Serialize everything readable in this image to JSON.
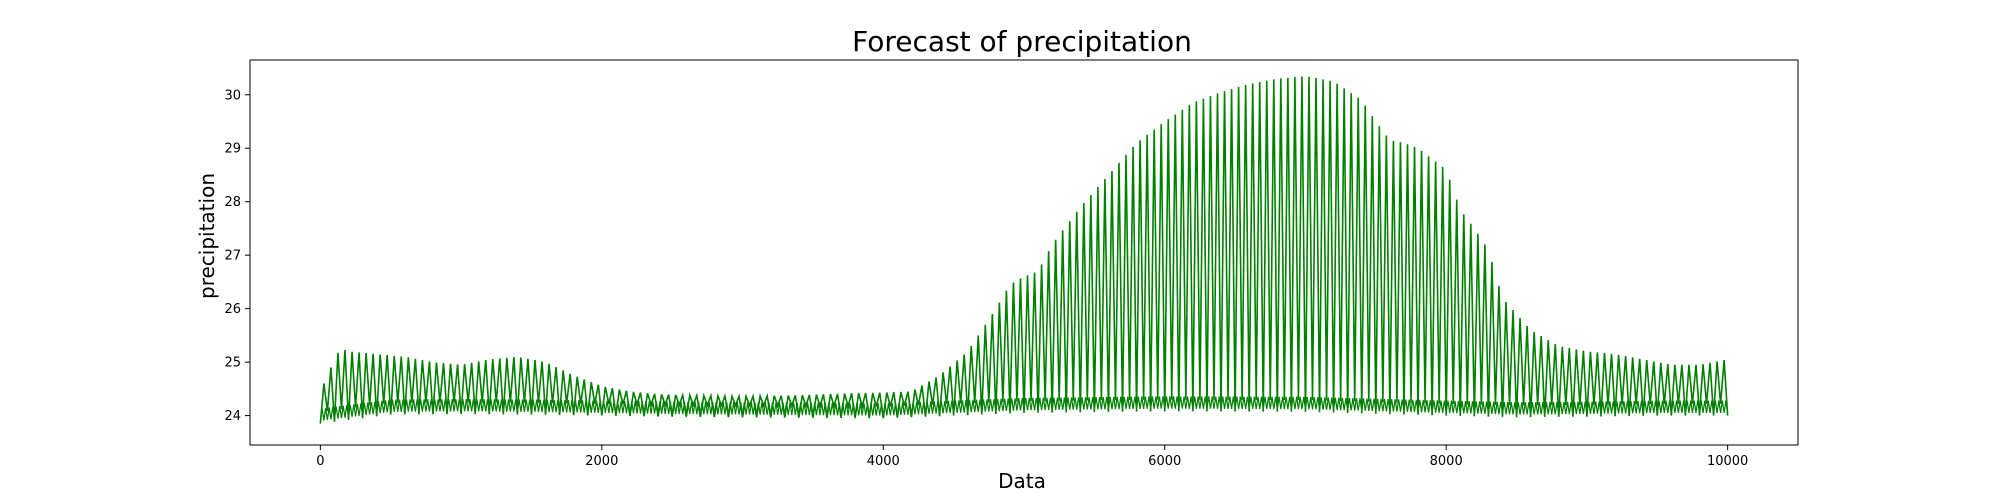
{
  "chart_data": {
    "type": "line",
    "title": "Forecast of precipitation",
    "xlabel": "Data",
    "ylabel": "precipitation",
    "xlim": [
      -500,
      10500
    ],
    "ylim": [
      23.45,
      30.65
    ],
    "x_ticks": [
      0,
      2000,
      4000,
      6000,
      8000,
      10000
    ],
    "y_ticks": [
      24,
      25,
      26,
      27,
      28,
      29,
      30
    ],
    "grid": false,
    "legend": "none",
    "color": "#008000",
    "x_range": [
      0,
      10000
    ],
    "cycle_period": 50,
    "series": [
      {
        "upper_envelope": {
          "x": [
            0,
            50,
            100,
            150,
            200,
            400,
            600,
            800,
            1000,
            1200,
            1400,
            1600,
            1800,
            2000,
            2200,
            2400,
            2600,
            2800,
            3000,
            3200,
            3400,
            3600,
            3800,
            4000,
            4200,
            4400,
            4600,
            4800,
            4900,
            5000,
            5100,
            5200,
            5400,
            5600,
            5800,
            6000,
            6200,
            6400,
            6600,
            6800,
            7000,
            7200,
            7400,
            7500,
            7600,
            7700,
            7800,
            8000,
            8100,
            8200,
            8300,
            8400,
            8600,
            8800,
            9000,
            9200,
            9400,
            9600,
            9800,
            10000
          ],
          "y": [
            24.5,
            24.7,
            25.1,
            25.25,
            25.2,
            25.15,
            25.1,
            25.0,
            24.95,
            25.05,
            25.1,
            25.0,
            24.75,
            24.55,
            24.45,
            24.4,
            24.38,
            24.37,
            24.36,
            24.37,
            24.38,
            24.4,
            24.42,
            24.43,
            24.45,
            24.75,
            25.2,
            26.0,
            26.45,
            26.6,
            26.7,
            27.2,
            27.9,
            28.5,
            29.1,
            29.5,
            29.85,
            30.05,
            30.2,
            30.3,
            30.35,
            30.25,
            29.9,
            29.5,
            29.15,
            29.1,
            29.0,
            28.6,
            27.85,
            27.5,
            27.1,
            26.2,
            25.6,
            25.3,
            25.2,
            25.15,
            25.05,
            24.95,
            24.95,
            25.05
          ]
        },
        "lower_envelope": {
          "x": [
            0,
            500,
            1000,
            1500,
            2000,
            2500,
            3000,
            3500,
            4000,
            4500,
            5000,
            6000,
            7000,
            8000,
            8500,
            9000,
            9500,
            10000
          ],
          "y": [
            23.85,
            24.02,
            24.03,
            24.02,
            24.0,
            23.98,
            23.97,
            23.96,
            23.95,
            24.0,
            24.05,
            24.08,
            24.07,
            24.0,
            23.97,
            23.98,
            24.0,
            24.0
          ]
        }
      }
    ]
  }
}
